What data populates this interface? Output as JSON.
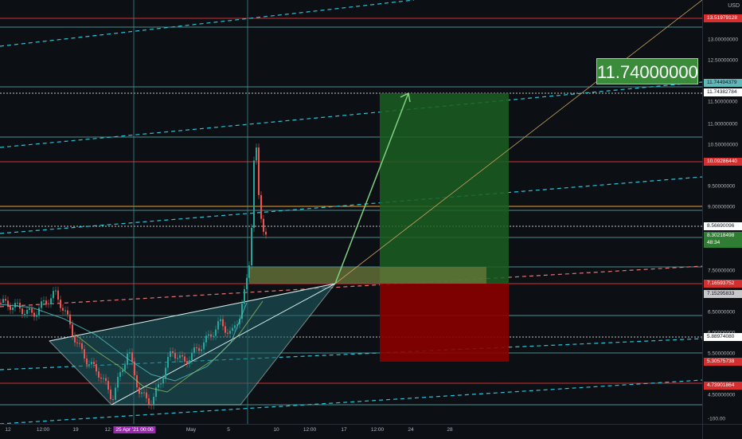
{
  "colors": {
    "background": "#0c1014",
    "horizontal_line_teal": "#5fb7b7",
    "horizontal_line_red": "#d32f2f",
    "horizontal_line_orange": "#f0a030",
    "dashed_channel": "#26c6da",
    "profit_zone": "#1b5e20",
    "loss_zone": "#8b0000",
    "entry_zone": "#6b6b3a",
    "candle_up": "#26a69a",
    "candle_down": "#ef5350",
    "triangle_fill": "#1f5f66"
  },
  "price_axis": {
    "currency": "USD",
    "ticks": [
      "13.00000000",
      "12.50000000",
      "11.50000000",
      "11.00000000",
      "10.50000000",
      "9.50000000",
      "9.00000000",
      "7.50000000",
      "6.50000000",
      "6.00000000",
      "5.50000000",
      "4.50000000",
      "-100.00"
    ],
    "badges": [
      {
        "text": "13.51979128",
        "color": "#d32f2f"
      },
      {
        "text": "11.74494379",
        "color": "#5fb7b7"
      },
      {
        "text": "11.74382784",
        "color": "#ffffff"
      },
      {
        "text": "10.09286440",
        "color": "#d32f2f"
      },
      {
        "text": "8.56690096",
        "color": "#ffffff"
      },
      {
        "text": "7.16593752",
        "color": "#d32f2f"
      },
      {
        "text": "7.15295833",
        "color": "#c8c8c8"
      },
      {
        "text": "5.88974080",
        "color": "#ffffff"
      },
      {
        "text": "5.30575738",
        "color": "#d32f2f"
      },
      {
        "text": "4.73901864",
        "color": "#d32f2f"
      }
    ],
    "current_price": "8.30218498",
    "countdown": "48:34"
  },
  "time_axis": {
    "labels": [
      "12",
      "12:00",
      "19",
      "12:",
      "25 Apr '21",
      "00:00",
      "May",
      "5",
      "10",
      "12:00",
      "17",
      "12:00",
      "24",
      "28"
    ],
    "highlighted": "25 Apr '21   00:00"
  },
  "target_label": "11.74000000"
}
